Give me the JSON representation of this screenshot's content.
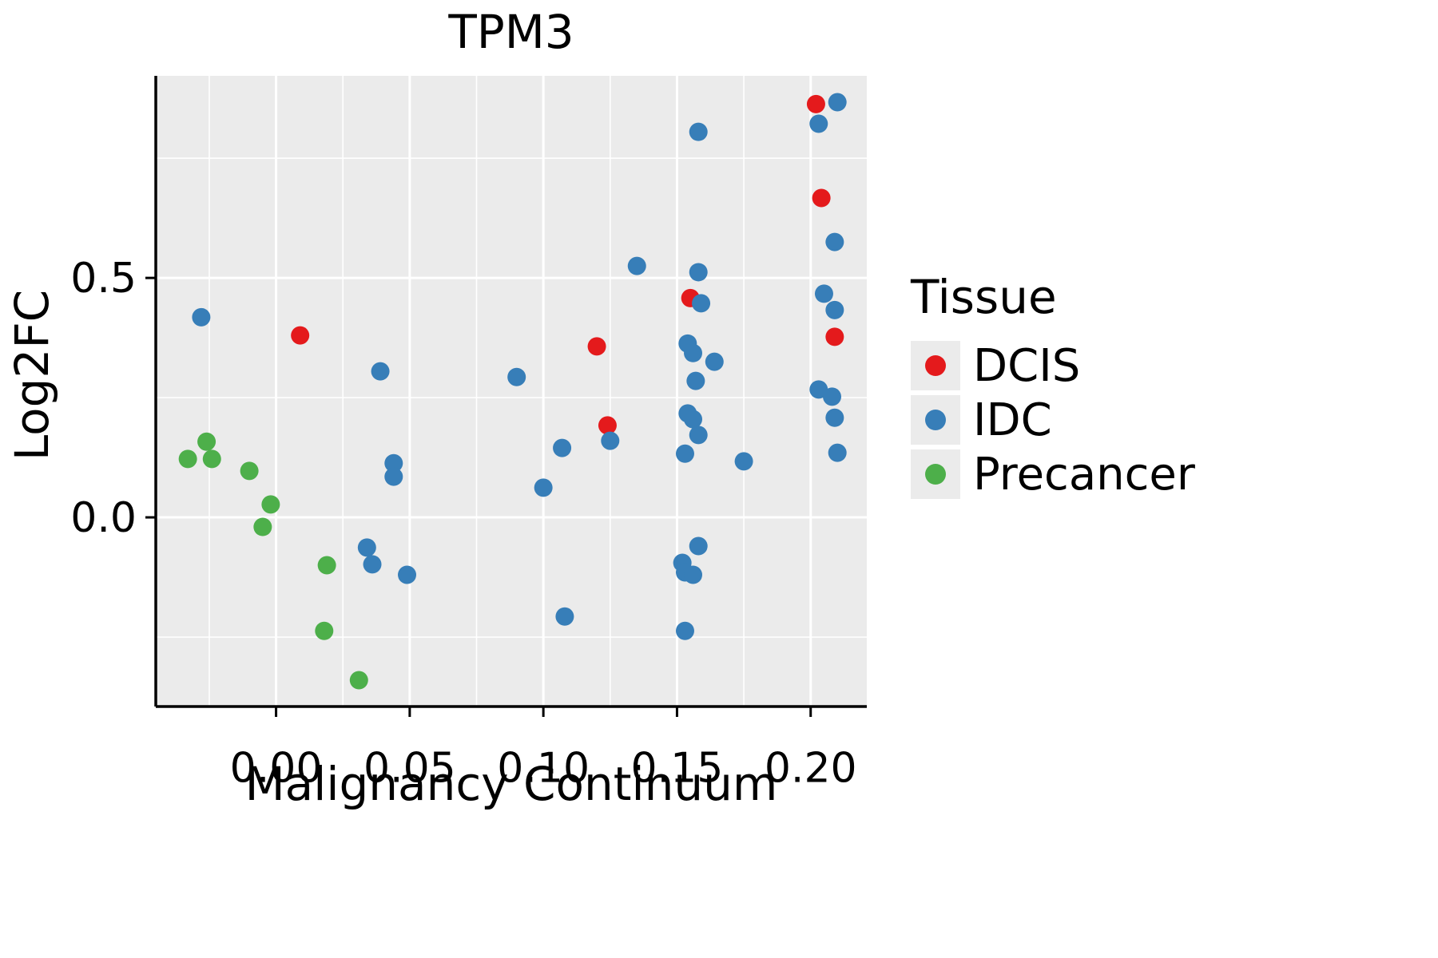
{
  "chart_data": {
    "type": "scatter",
    "title": "TPM3",
    "xlabel": "Malignancy Continuum",
    "ylabel": "Log2FC",
    "xlim": [
      -0.045,
      0.221
    ],
    "ylim": [
      -0.395,
      0.922
    ],
    "xticks": [
      0.0,
      0.05,
      0.1,
      0.15,
      0.2
    ],
    "xtick_labels": [
      "0.00",
      "0.05",
      "0.10",
      "0.15",
      "0.20"
    ],
    "yticks": [
      0.0,
      0.5
    ],
    "ytick_labels": [
      "0.0",
      "0.5"
    ],
    "x_minor": [
      -0.025,
      0.025,
      0.075,
      0.125,
      0.175
    ],
    "y_minor": [
      -0.25,
      0.25,
      0.75
    ],
    "grid": true,
    "legend_title": "Tissue",
    "legend_position": "right",
    "panel_background": "#EBEBEB",
    "grid_color": "#FFFFFF",
    "axis_color": "#000000",
    "series": [
      {
        "name": "DCIS",
        "color": "#E41A1C",
        "points": [
          [
            0.202,
            0.863
          ],
          [
            0.204,
            0.667
          ],
          [
            0.155,
            0.458
          ],
          [
            0.009,
            0.38
          ],
          [
            0.209,
            0.377
          ],
          [
            0.12,
            0.357
          ],
          [
            0.124,
            0.192
          ]
        ]
      },
      {
        "name": "IDC",
        "color": "#377EB8",
        "points": [
          [
            0.21,
            0.867
          ],
          [
            0.203,
            0.822
          ],
          [
            0.158,
            0.805
          ],
          [
            0.209,
            0.575
          ],
          [
            0.135,
            0.525
          ],
          [
            0.158,
            0.512
          ],
          [
            0.205,
            0.467
          ],
          [
            0.159,
            0.447
          ],
          [
            0.209,
            0.433
          ],
          [
            -0.028,
            0.418
          ],
          [
            0.154,
            0.363
          ],
          [
            0.156,
            0.343
          ],
          [
            0.164,
            0.325
          ],
          [
            0.039,
            0.305
          ],
          [
            0.09,
            0.293
          ],
          [
            0.157,
            0.285
          ],
          [
            0.203,
            0.267
          ],
          [
            0.208,
            0.252
          ],
          [
            0.154,
            0.217
          ],
          [
            0.209,
            0.208
          ],
          [
            0.156,
            0.205
          ],
          [
            0.158,
            0.172
          ],
          [
            0.125,
            0.16
          ],
          [
            0.107,
            0.145
          ],
          [
            0.21,
            0.135
          ],
          [
            0.153,
            0.133
          ],
          [
            0.175,
            0.117
          ],
          [
            0.044,
            0.113
          ],
          [
            0.044,
            0.085
          ],
          [
            0.1,
            0.062
          ],
          [
            0.034,
            -0.063
          ],
          [
            0.158,
            -0.06
          ],
          [
            0.036,
            -0.098
          ],
          [
            0.152,
            -0.095
          ],
          [
            0.153,
            -0.115
          ],
          [
            0.156,
            -0.12
          ],
          [
            0.049,
            -0.12
          ],
          [
            0.108,
            -0.207
          ],
          [
            0.153,
            -0.237
          ]
        ]
      },
      {
        "name": "Precancer",
        "color": "#4DAF4A",
        "points": [
          [
            -0.033,
            0.122
          ],
          [
            -0.026,
            0.158
          ],
          [
            -0.024,
            0.122
          ],
          [
            -0.01,
            0.097
          ],
          [
            -0.002,
            0.027
          ],
          [
            -0.005,
            -0.02
          ],
          [
            0.019,
            -0.1
          ],
          [
            0.018,
            -0.237
          ],
          [
            0.031,
            -0.34
          ]
        ]
      }
    ]
  }
}
